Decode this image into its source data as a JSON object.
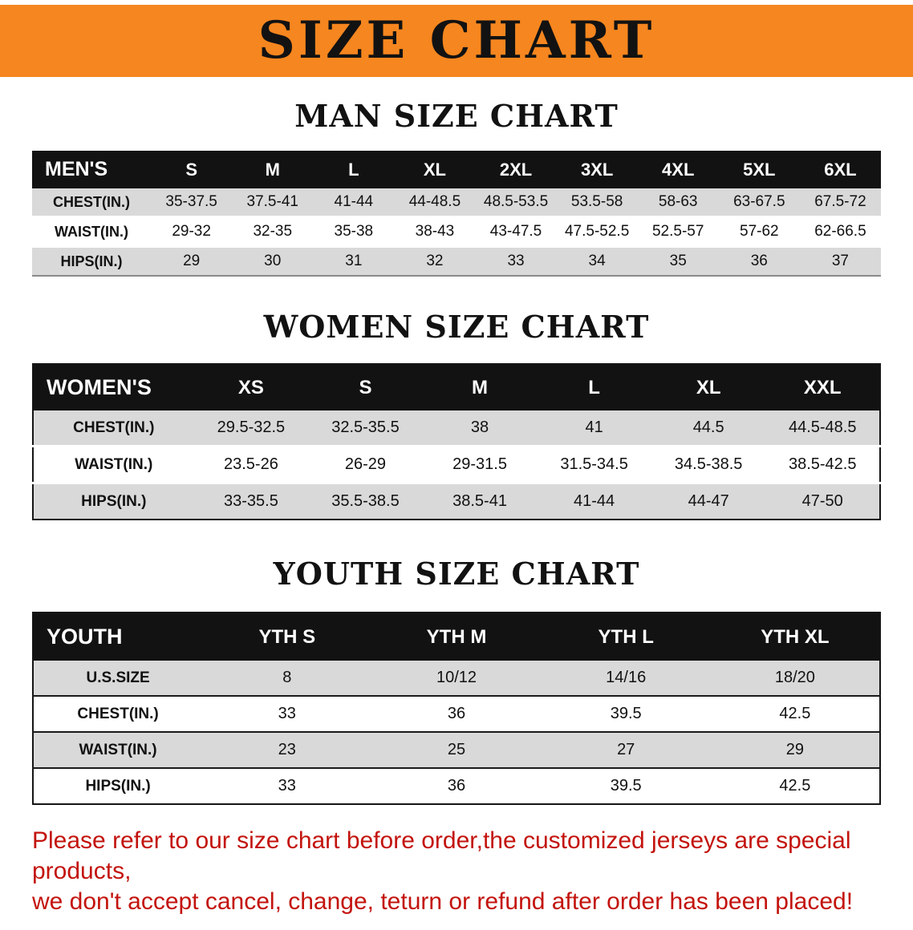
{
  "banner": {
    "title": "SIZE CHART",
    "bg_color": "#F6861F",
    "text_color": "#121212"
  },
  "men": {
    "heading": "MAN SIZE CHART",
    "table": {
      "header": [
        "MEN'S",
        "S",
        "M",
        "L",
        "XL",
        "2XL",
        "3XL",
        "4XL",
        "5XL",
        "6XL"
      ],
      "rows": [
        [
          "CHEST(IN.)",
          "35-37.5",
          "37.5-41",
          "41-44",
          "44-48.5",
          "48.5-53.5",
          "53.5-58",
          "58-63",
          "63-67.5",
          "67.5-72"
        ],
        [
          "WAIST(IN.)",
          "29-32",
          "32-35",
          "35-38",
          "38-43",
          "43-47.5",
          "47.5-52.5",
          "52.5-57",
          "57-62",
          "62-66.5"
        ],
        [
          "HIPS(IN.)",
          "29",
          "30",
          "31",
          "32",
          "33",
          "34",
          "35",
          "36",
          "37"
        ]
      ]
    }
  },
  "women": {
    "heading": "WOMEN SIZE CHART",
    "table": {
      "header": [
        "WOMEN'S",
        "XS",
        "S",
        "M",
        "L",
        "XL",
        "XXL"
      ],
      "rows": [
        [
          "CHEST(IN.)",
          "29.5-32.5",
          "32.5-35.5",
          "38",
          "41",
          "44.5",
          "44.5-48.5"
        ],
        [
          "WAIST(IN.)",
          "23.5-26",
          "26-29",
          "29-31.5",
          "31.5-34.5",
          "34.5-38.5",
          "38.5-42.5"
        ],
        [
          "HIPS(IN.)",
          "33-35.5",
          "35.5-38.5",
          "38.5-41",
          "41-44",
          "44-47",
          "47-50"
        ]
      ]
    }
  },
  "youth": {
    "heading": "YOUTH SIZE CHART",
    "table": {
      "header": [
        "YOUTH",
        "YTH S",
        "YTH M",
        "YTH L",
        "YTH XL"
      ],
      "rows": [
        [
          "U.S.SIZE",
          "8",
          "10/12",
          "14/16",
          "18/20"
        ],
        [
          "CHEST(IN.)",
          "33",
          "36",
          "39.5",
          "42.5"
        ],
        [
          "WAIST(IN.)",
          "23",
          "25",
          "27",
          "29"
        ],
        [
          "HIPS(IN.)",
          "33",
          "36",
          "39.5",
          "42.5"
        ]
      ]
    }
  },
  "footer": {
    "line1": "Please refer to our size chart before order,the customized jerseys are special products,",
    "line2": "we don't accept cancel, change, teturn or refund after order has been placed!",
    "text_color": "#C3130D"
  }
}
